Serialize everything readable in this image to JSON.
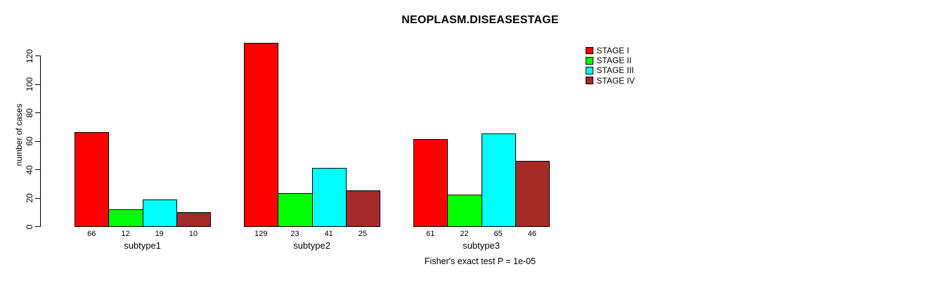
{
  "chart_data": {
    "type": "bar",
    "title": "NEOPLASM.DISEASESTAGE",
    "ylabel": "number of cases",
    "xlabel": "",
    "categories": [
      "subtype1",
      "subtype2",
      "subtype3"
    ],
    "series": [
      {
        "name": "STAGE I",
        "color": "#FF0000",
        "values": [
          66,
          129,
          61
        ]
      },
      {
        "name": "STAGE II",
        "color": "#00FF00",
        "values": [
          12,
          23,
          22
        ]
      },
      {
        "name": "STAGE III",
        "color": "#00FFFF",
        "values": [
          19,
          41,
          65
        ]
      },
      {
        "name": "STAGE IV",
        "color": "#A52A2A",
        "values": [
          10,
          25,
          46
        ]
      }
    ],
    "bar_value_labels": {
      "subtype1": [
        66,
        12,
        19,
        10
      ],
      "subtype2": [
        129,
        23,
        41,
        25
      ],
      "subtype3": [
        61,
        22,
        65,
        46
      ]
    },
    "y_ticks": [
      0,
      20,
      40,
      60,
      80,
      100,
      120
    ],
    "ylim": [
      0,
      120
    ],
    "grid": false,
    "legend_position": "top-right",
    "legend_entries": [
      "STAGE I",
      "STAGE II",
      "STAGE III",
      "STAGE IV"
    ],
    "annotation": "Fisher's exact test P = 1e-05",
    "background_color": "#FFFFFF",
    "bar_border_color": "#000000"
  }
}
